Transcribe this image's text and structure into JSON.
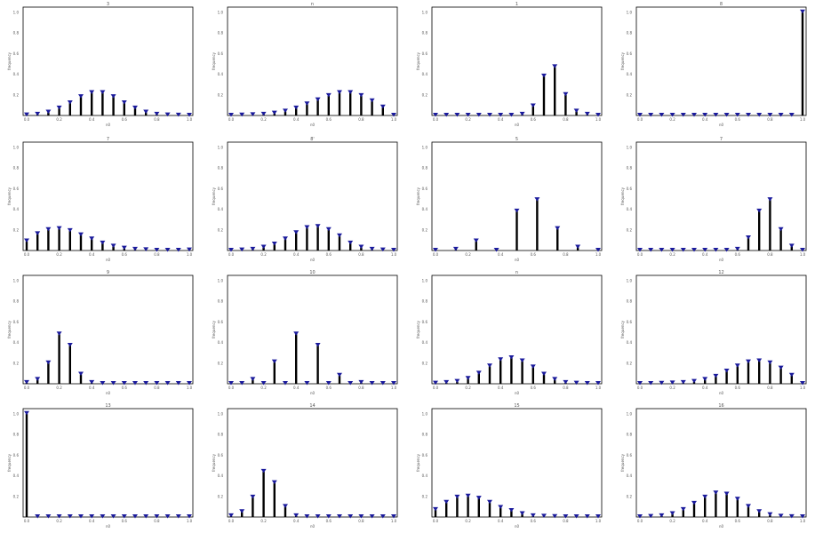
{
  "colors": {
    "stem": "#000000",
    "marker": "#1a1a9c",
    "frame": "#000000"
  },
  "panel_ylabel": "frequency",
  "chart_data": [
    {
      "type": "stem",
      "title": "3",
      "xlabel": "n0",
      "ylabel": "frequency",
      "x": [
        0,
        1,
        2,
        3,
        4,
        5,
        6,
        7,
        8,
        9,
        10,
        11,
        12,
        13,
        14,
        15
      ],
      "values": [
        0.003,
        0.01,
        0.03,
        0.07,
        0.12,
        0.18,
        0.22,
        0.22,
        0.18,
        0.12,
        0.07,
        0.03,
        0.01,
        0.003,
        0.001,
        0.0
      ],
      "ylim": [
        0,
        1.05
      ],
      "y_ticks": [
        "1.0",
        "0.8",
        "0.6",
        "0.4",
        "0.2"
      ],
      "x_ticks": [
        "0.0",
        "0.2",
        "0.4",
        "0.6",
        "0.8",
        "1.0"
      ]
    },
    {
      "type": "stem",
      "title": "n",
      "xlabel": "n0",
      "ylabel": "frequency",
      "x": [
        0,
        1,
        2,
        3,
        4,
        5,
        6,
        7,
        8,
        9,
        10,
        11,
        12,
        13,
        14,
        15
      ],
      "values": [
        0.0,
        0.002,
        0.005,
        0.01,
        0.02,
        0.04,
        0.07,
        0.11,
        0.15,
        0.19,
        0.22,
        0.22,
        0.19,
        0.14,
        0.08,
        0.0
      ],
      "ylim": [
        0,
        1.05
      ],
      "y_ticks": [
        "1.0",
        "0.8",
        "0.6",
        "0.4",
        "0.2"
      ],
      "x_ticks": [
        "0.0",
        "0.2",
        "0.4",
        "0.6",
        "0.8",
        "1.0"
      ]
    },
    {
      "type": "stem",
      "title": "1",
      "xlabel": "n0",
      "ylabel": "frequency",
      "x": [
        0,
        1,
        2,
        3,
        4,
        5,
        6,
        7,
        8,
        9,
        10,
        11,
        12,
        13,
        14,
        15
      ],
      "values": [
        0,
        0,
        0,
        0,
        0,
        0,
        0,
        0,
        0.01,
        0.09,
        0.38,
        0.47,
        0.2,
        0.04,
        0.01,
        0
      ],
      "ylim": [
        0,
        1.05
      ],
      "y_ticks": [
        "1.0",
        "0.8",
        "0.6",
        "0.4",
        "0.2"
      ],
      "x_ticks": [
        "0.0",
        "0.2",
        "0.4",
        "0.6",
        "0.8",
        "1.0"
      ]
    },
    {
      "type": "stem",
      "title": "8",
      "xlabel": "n0",
      "ylabel": "frequency",
      "x": [
        0,
        1,
        2,
        3,
        4,
        5,
        6,
        7,
        8,
        9,
        10,
        11,
        12,
        13,
        14,
        15
      ],
      "values": [
        0,
        0,
        0,
        0,
        0,
        0,
        0,
        0,
        0,
        0,
        0,
        0,
        0,
        0,
        0,
        1.0
      ],
      "ylim": [
        0,
        1.05
      ],
      "y_ticks": [
        "1.0",
        "0.8",
        "0.6",
        "0.4",
        "0.2"
      ],
      "x_ticks": [
        "0.0",
        "0.2",
        "0.4",
        "0.6",
        "0.8",
        "1.0"
      ]
    },
    {
      "type": "stem",
      "title": "7",
      "xlabel": "n0",
      "ylabel": "frequency",
      "x": [
        0,
        1,
        2,
        3,
        4,
        5,
        6,
        7,
        8,
        9,
        10,
        11,
        12,
        13,
        14,
        15
      ],
      "values": [
        0.09,
        0.16,
        0.2,
        0.21,
        0.19,
        0.15,
        0.11,
        0.07,
        0.04,
        0.02,
        0.01,
        0.005,
        0.0,
        0.0,
        0.0,
        0.003
      ],
      "ylim": [
        0,
        1.05
      ],
      "y_ticks": [
        "1.0",
        "0.8",
        "0.6",
        "0.4",
        "0.2"
      ],
      "x_ticks": [
        "0.0",
        "0.2",
        "0.4",
        "0.6",
        "0.8",
        "1.0"
      ]
    },
    {
      "type": "stem",
      "title": "8'",
      "xlabel": "n0",
      "ylabel": "frequency",
      "x": [
        0,
        1,
        2,
        3,
        4,
        5,
        6,
        7,
        8,
        9,
        10,
        11,
        12,
        13,
        14,
        15
      ],
      "values": [
        0.0,
        0.003,
        0.01,
        0.03,
        0.06,
        0.11,
        0.17,
        0.22,
        0.23,
        0.2,
        0.14,
        0.07,
        0.03,
        0.01,
        0.003,
        0.0
      ],
      "ylim": [
        0,
        1.05
      ],
      "y_ticks": [
        "1.0",
        "0.8",
        "0.6",
        "0.4",
        "0.2"
      ],
      "x_ticks": [
        "0.0",
        "0.2",
        "0.4",
        "0.6",
        "0.8",
        "1.0"
      ]
    },
    {
      "type": "stem",
      "title": "5",
      "xlabel": "n0",
      "ylabel": "frequency",
      "x": [
        0,
        1,
        2,
        3,
        4,
        5,
        6,
        7,
        8
      ],
      "values": [
        0.0,
        0.01,
        0.09,
        0.0,
        0.38,
        0.49,
        0.21,
        0.03,
        0.0
      ],
      "ylim": [
        0,
        1.05
      ],
      "y_ticks": [
        "1.0",
        "0.8",
        "0.6",
        "0.4",
        "0.2"
      ],
      "x_ticks": [
        "0.0",
        "0.2",
        "0.4",
        "0.6",
        "0.8",
        "1.0"
      ]
    },
    {
      "type": "stem",
      "title": "7",
      "xlabel": "n0",
      "ylabel": "frequency",
      "x": [
        0,
        1,
        2,
        3,
        4,
        5,
        6,
        7,
        8,
        9,
        10,
        11,
        12,
        13,
        14,
        15
      ],
      "values": [
        0,
        0,
        0,
        0,
        0,
        0,
        0,
        0,
        0,
        0.01,
        0.12,
        0.38,
        0.49,
        0.2,
        0.04,
        0
      ],
      "ylim": [
        0,
        1.05
      ],
      "y_ticks": [
        "1.0",
        "0.8",
        "0.6",
        "0.4",
        "0.2"
      ],
      "x_ticks": [
        "0.0",
        "0.2",
        "0.4",
        "0.6",
        "0.8",
        "1.0"
      ]
    },
    {
      "type": "stem",
      "title": "9",
      "xlabel": "n0",
      "ylabel": "frequency",
      "x": [
        0,
        1,
        2,
        3,
        4,
        5,
        6,
        7,
        8,
        9,
        10,
        11,
        12,
        13,
        14,
        15
      ],
      "values": [
        0.01,
        0.04,
        0.2,
        0.48,
        0.37,
        0.09,
        0.01,
        0,
        0,
        0,
        0,
        0,
        0,
        0,
        0,
        0
      ],
      "ylim": [
        0,
        1.05
      ],
      "y_ticks": [
        "1.0",
        "0.8",
        "0.6",
        "0.4",
        "0.2"
      ],
      "x_ticks": [
        "0.0",
        "0.2",
        "0.4",
        "0.6",
        "0.8",
        "1.0"
      ]
    },
    {
      "type": "stem",
      "title": "10",
      "xlabel": "n0",
      "ylabel": "frequency",
      "x": [
        0,
        1,
        2,
        3,
        4,
        5,
        6,
        7,
        8,
        9,
        10,
        11,
        12,
        13,
        14,
        15
      ],
      "values": [
        0.0,
        0,
        0.04,
        0,
        0.21,
        0,
        0.48,
        0,
        0.37,
        0,
        0.08,
        0,
        0.01,
        0,
        0,
        0
      ],
      "ylim": [
        0,
        1.05
      ],
      "y_ticks": [
        "1.0",
        "0.8",
        "0.6",
        "0.4",
        "0.2"
      ],
      "x_ticks": [
        "0.0",
        "0.2",
        "0.4",
        "0.6",
        "0.8",
        "1.0"
      ]
    },
    {
      "type": "stem",
      "title": "n",
      "xlabel": "n0",
      "ylabel": "frequency",
      "x": [
        0,
        1,
        2,
        3,
        4,
        5,
        6,
        7,
        8,
        9,
        10,
        11,
        12,
        13,
        14,
        15
      ],
      "values": [
        0.003,
        0.01,
        0.02,
        0.05,
        0.1,
        0.17,
        0.23,
        0.25,
        0.22,
        0.16,
        0.09,
        0.04,
        0.01,
        0.003,
        0.0,
        0.0
      ],
      "ylim": [
        0,
        1.05
      ],
      "y_ticks": [
        "1.0",
        "0.8",
        "0.6",
        "0.4",
        "0.2"
      ],
      "x_ticks": [
        "0.0",
        "0.2",
        "0.4",
        "0.6",
        "0.8",
        "1.0"
      ]
    },
    {
      "type": "stem",
      "title": "12",
      "xlabel": "n0",
      "ylabel": "frequency",
      "x": [
        0,
        1,
        2,
        3,
        4,
        5,
        6,
        7,
        8,
        9,
        10,
        11,
        12,
        13,
        14,
        15
      ],
      "values": [
        0.0,
        0.0,
        0.002,
        0.005,
        0.01,
        0.02,
        0.04,
        0.07,
        0.12,
        0.17,
        0.21,
        0.22,
        0.2,
        0.15,
        0.08,
        0.0
      ],
      "ylim": [
        0,
        1.05
      ],
      "y_ticks": [
        "1.0",
        "0.8",
        "0.6",
        "0.4",
        "0.2"
      ],
      "x_ticks": [
        "0.0",
        "0.2",
        "0.4",
        "0.6",
        "0.8",
        "1.0"
      ]
    },
    {
      "type": "stem",
      "title": "13",
      "xlabel": "n0",
      "ylabel": "frequency",
      "x": [
        0,
        1,
        2,
        3,
        4,
        5,
        6,
        7,
        8,
        9,
        10,
        11,
        12,
        13,
        14,
        15
      ],
      "values": [
        1.0,
        0,
        0,
        0,
        0,
        0,
        0,
        0,
        0,
        0,
        0,
        0,
        0,
        0,
        0,
        0
      ],
      "ylim": [
        0,
        1.05
      ],
      "y_ticks": [
        "1.0",
        "0.8",
        "0.6",
        "0.4",
        "0.2"
      ],
      "x_ticks": [
        "0.0",
        "0.2",
        "0.4",
        "0.6",
        "0.8",
        "1.0"
      ]
    },
    {
      "type": "stem",
      "title": "14",
      "xlabel": "n0",
      "ylabel": "frequency",
      "x": [
        0,
        1,
        2,
        3,
        4,
        5,
        6,
        7,
        8,
        9,
        10,
        11,
        12,
        13,
        14,
        15
      ],
      "values": [
        0.01,
        0.05,
        0.19,
        0.44,
        0.33,
        0.1,
        0.01,
        0,
        0,
        0,
        0,
        0,
        0,
        0,
        0,
        0
      ],
      "ylim": [
        0,
        1.05
      ],
      "y_ticks": [
        "1.0",
        "0.8",
        "0.6",
        "0.4",
        "0.2"
      ],
      "x_ticks": [
        "0.0",
        "0.2",
        "0.4",
        "0.6",
        "0.8",
        "1.0"
      ]
    },
    {
      "type": "stem",
      "title": "15",
      "xlabel": "n0",
      "ylabel": "frequency",
      "x": [
        0,
        1,
        2,
        3,
        4,
        5,
        6,
        7,
        8,
        9,
        10,
        11,
        12,
        13,
        14,
        15
      ],
      "values": [
        0.07,
        0.14,
        0.19,
        0.2,
        0.18,
        0.14,
        0.09,
        0.06,
        0.03,
        0.01,
        0.005,
        0.002,
        0.0,
        0.0,
        0.0,
        0.0
      ],
      "ylim": [
        0,
        1.05
      ],
      "y_ticks": [
        "1.0",
        "0.8",
        "0.6",
        "0.4",
        "0.2"
      ],
      "x_ticks": [
        "0.0",
        "0.2",
        "0.4",
        "0.6",
        "0.8",
        "1.0"
      ]
    },
    {
      "type": "stem",
      "title": "16",
      "xlabel": "n0",
      "ylabel": "frequency",
      "x": [
        0,
        1,
        2,
        3,
        4,
        5,
        6,
        7,
        8,
        9,
        10,
        11,
        12,
        13,
        14,
        15
      ],
      "values": [
        0.0,
        0.003,
        0.01,
        0.03,
        0.07,
        0.13,
        0.19,
        0.23,
        0.22,
        0.17,
        0.1,
        0.05,
        0.02,
        0.005,
        0.001,
        0.0
      ],
      "ylim": [
        0,
        1.05
      ],
      "y_ticks": [
        "1.0",
        "0.8",
        "0.6",
        "0.4",
        "0.2"
      ],
      "x_ticks": [
        "0.0",
        "0.2",
        "0.4",
        "0.6",
        "0.8",
        "1.0"
      ]
    }
  ]
}
